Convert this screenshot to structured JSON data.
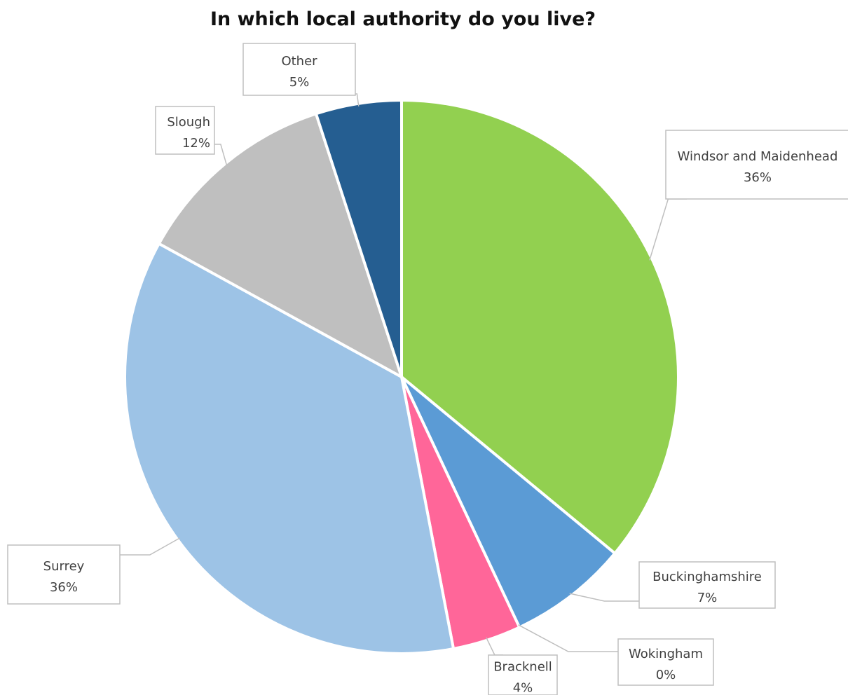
{
  "chart_data": {
    "type": "pie",
    "title": "In which local authority do you live?",
    "slices": [
      {
        "name": "Windsor and Maidenhead",
        "value": 36,
        "label": "36%",
        "color": "#92d050"
      },
      {
        "name": "Buckinghamshire",
        "value": 7,
        "label": "7%",
        "color": "#5b9bd5"
      },
      {
        "name": "Wokingham",
        "value": 0,
        "label": "0%",
        "color": "#ffc000"
      },
      {
        "name": "Bracknell",
        "value": 4,
        "label": "4%",
        "color": "#ff6699"
      },
      {
        "name": "Surrey",
        "value": 36,
        "label": "36%",
        "color": "#9dc3e6"
      },
      {
        "name": "Slough",
        "value": 12,
        "label": "12%",
        "color": "#bfbfbf"
      },
      {
        "name": "Other",
        "value": 5,
        "label": "5%",
        "color": "#255e91"
      }
    ],
    "start_angle": "12 o'clock",
    "direction": "clockwise",
    "legend": "none",
    "data_labels": "callouts"
  }
}
